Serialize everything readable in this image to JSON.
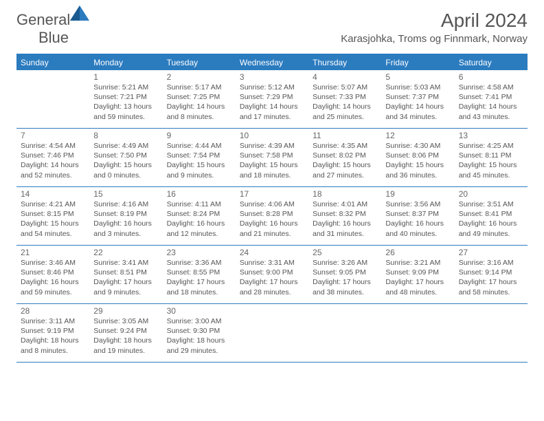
{
  "brand": {
    "part1": "General",
    "part2": "Blue"
  },
  "title": "April 2024",
  "location": "Karasjohka, Troms og Finnmark, Norway",
  "colors": {
    "brand_blue": "#2b7bbf",
    "text": "#555555",
    "background": "#ffffff"
  },
  "day_names": [
    "Sunday",
    "Monday",
    "Tuesday",
    "Wednesday",
    "Thursday",
    "Friday",
    "Saturday"
  ],
  "weeks": [
    [
      {
        "num": "",
        "lines": ""
      },
      {
        "num": "1",
        "lines": "Sunrise: 5:21 AM\nSunset: 7:21 PM\nDaylight: 13 hours\nand 59 minutes."
      },
      {
        "num": "2",
        "lines": "Sunrise: 5:17 AM\nSunset: 7:25 PM\nDaylight: 14 hours\nand 8 minutes."
      },
      {
        "num": "3",
        "lines": "Sunrise: 5:12 AM\nSunset: 7:29 PM\nDaylight: 14 hours\nand 17 minutes."
      },
      {
        "num": "4",
        "lines": "Sunrise: 5:07 AM\nSunset: 7:33 PM\nDaylight: 14 hours\nand 25 minutes."
      },
      {
        "num": "5",
        "lines": "Sunrise: 5:03 AM\nSunset: 7:37 PM\nDaylight: 14 hours\nand 34 minutes."
      },
      {
        "num": "6",
        "lines": "Sunrise: 4:58 AM\nSunset: 7:41 PM\nDaylight: 14 hours\nand 43 minutes."
      }
    ],
    [
      {
        "num": "7",
        "lines": "Sunrise: 4:54 AM\nSunset: 7:46 PM\nDaylight: 14 hours\nand 52 minutes."
      },
      {
        "num": "8",
        "lines": "Sunrise: 4:49 AM\nSunset: 7:50 PM\nDaylight: 15 hours\nand 0 minutes."
      },
      {
        "num": "9",
        "lines": "Sunrise: 4:44 AM\nSunset: 7:54 PM\nDaylight: 15 hours\nand 9 minutes."
      },
      {
        "num": "10",
        "lines": "Sunrise: 4:39 AM\nSunset: 7:58 PM\nDaylight: 15 hours\nand 18 minutes."
      },
      {
        "num": "11",
        "lines": "Sunrise: 4:35 AM\nSunset: 8:02 PM\nDaylight: 15 hours\nand 27 minutes."
      },
      {
        "num": "12",
        "lines": "Sunrise: 4:30 AM\nSunset: 8:06 PM\nDaylight: 15 hours\nand 36 minutes."
      },
      {
        "num": "13",
        "lines": "Sunrise: 4:25 AM\nSunset: 8:11 PM\nDaylight: 15 hours\nand 45 minutes."
      }
    ],
    [
      {
        "num": "14",
        "lines": "Sunrise: 4:21 AM\nSunset: 8:15 PM\nDaylight: 15 hours\nand 54 minutes."
      },
      {
        "num": "15",
        "lines": "Sunrise: 4:16 AM\nSunset: 8:19 PM\nDaylight: 16 hours\nand 3 minutes."
      },
      {
        "num": "16",
        "lines": "Sunrise: 4:11 AM\nSunset: 8:24 PM\nDaylight: 16 hours\nand 12 minutes."
      },
      {
        "num": "17",
        "lines": "Sunrise: 4:06 AM\nSunset: 8:28 PM\nDaylight: 16 hours\nand 21 minutes."
      },
      {
        "num": "18",
        "lines": "Sunrise: 4:01 AM\nSunset: 8:32 PM\nDaylight: 16 hours\nand 31 minutes."
      },
      {
        "num": "19",
        "lines": "Sunrise: 3:56 AM\nSunset: 8:37 PM\nDaylight: 16 hours\nand 40 minutes."
      },
      {
        "num": "20",
        "lines": "Sunrise: 3:51 AM\nSunset: 8:41 PM\nDaylight: 16 hours\nand 49 minutes."
      }
    ],
    [
      {
        "num": "21",
        "lines": "Sunrise: 3:46 AM\nSunset: 8:46 PM\nDaylight: 16 hours\nand 59 minutes."
      },
      {
        "num": "22",
        "lines": "Sunrise: 3:41 AM\nSunset: 8:51 PM\nDaylight: 17 hours\nand 9 minutes."
      },
      {
        "num": "23",
        "lines": "Sunrise: 3:36 AM\nSunset: 8:55 PM\nDaylight: 17 hours\nand 18 minutes."
      },
      {
        "num": "24",
        "lines": "Sunrise: 3:31 AM\nSunset: 9:00 PM\nDaylight: 17 hours\nand 28 minutes."
      },
      {
        "num": "25",
        "lines": "Sunrise: 3:26 AM\nSunset: 9:05 PM\nDaylight: 17 hours\nand 38 minutes."
      },
      {
        "num": "26",
        "lines": "Sunrise: 3:21 AM\nSunset: 9:09 PM\nDaylight: 17 hours\nand 48 minutes."
      },
      {
        "num": "27",
        "lines": "Sunrise: 3:16 AM\nSunset: 9:14 PM\nDaylight: 17 hours\nand 58 minutes."
      }
    ],
    [
      {
        "num": "28",
        "lines": "Sunrise: 3:11 AM\nSunset: 9:19 PM\nDaylight: 18 hours\nand 8 minutes."
      },
      {
        "num": "29",
        "lines": "Sunrise: 3:05 AM\nSunset: 9:24 PM\nDaylight: 18 hours\nand 19 minutes."
      },
      {
        "num": "30",
        "lines": "Sunrise: 3:00 AM\nSunset: 9:30 PM\nDaylight: 18 hours\nand 29 minutes."
      },
      {
        "num": "",
        "lines": ""
      },
      {
        "num": "",
        "lines": ""
      },
      {
        "num": "",
        "lines": ""
      },
      {
        "num": "",
        "lines": ""
      }
    ]
  ]
}
